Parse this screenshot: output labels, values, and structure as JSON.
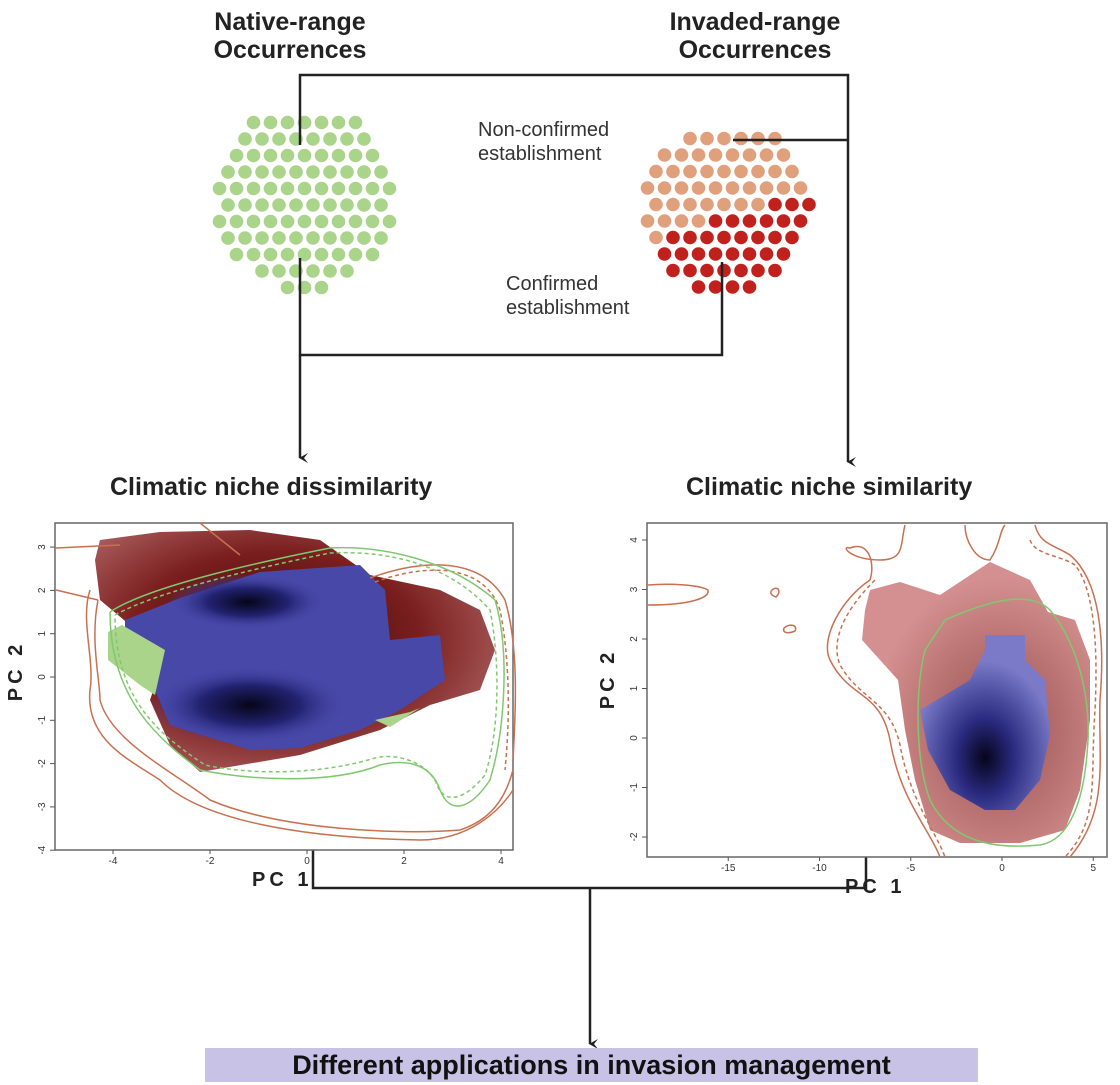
{
  "native": {
    "title_line1": "Native-range",
    "title_line2": "Occurrences",
    "dot_color": "#a9d48a"
  },
  "invaded": {
    "title_line1": "Invaded-range",
    "title_line2": "Occurrences",
    "nonconfirmed_label_line1": "Non-confirmed",
    "nonconfirmed_label_line2": "establishment",
    "nonconfirmed_color": "#e0a07c",
    "confirmed_label_line1": "Confirmed",
    "confirmed_label_line2": "establishment",
    "confirmed_color": "#c0211c"
  },
  "plots": [
    {
      "title": "Climatic niche dissimilarity",
      "xlabel": "PC 1",
      "ylabel": "PC 2",
      "xticks": [
        "-4",
        "-2",
        "0",
        "2",
        "4"
      ],
      "yticks": [
        "3",
        "2",
        "1",
        "0",
        "-1",
        "-2",
        "-3",
        "-4"
      ]
    },
    {
      "title": "Climatic niche similarity",
      "xlabel": "PC 1",
      "ylabel": "PC 2",
      "xticks": [
        "-15",
        "-10",
        "-5",
        "0",
        "5"
      ],
      "yticks": [
        "4",
        "3",
        "2",
        "1",
        "0",
        "-1",
        "-2"
      ]
    }
  ],
  "colors": {
    "native_density": "#1a1a6e",
    "invaded_density": "#7a1a1a",
    "similar_fill": "#d48c8c",
    "native_only": "#a9d48a",
    "contour_invaded": "#c87050",
    "contour_native": "#80c870"
  },
  "conclusion": "Different applications in invasion management"
}
